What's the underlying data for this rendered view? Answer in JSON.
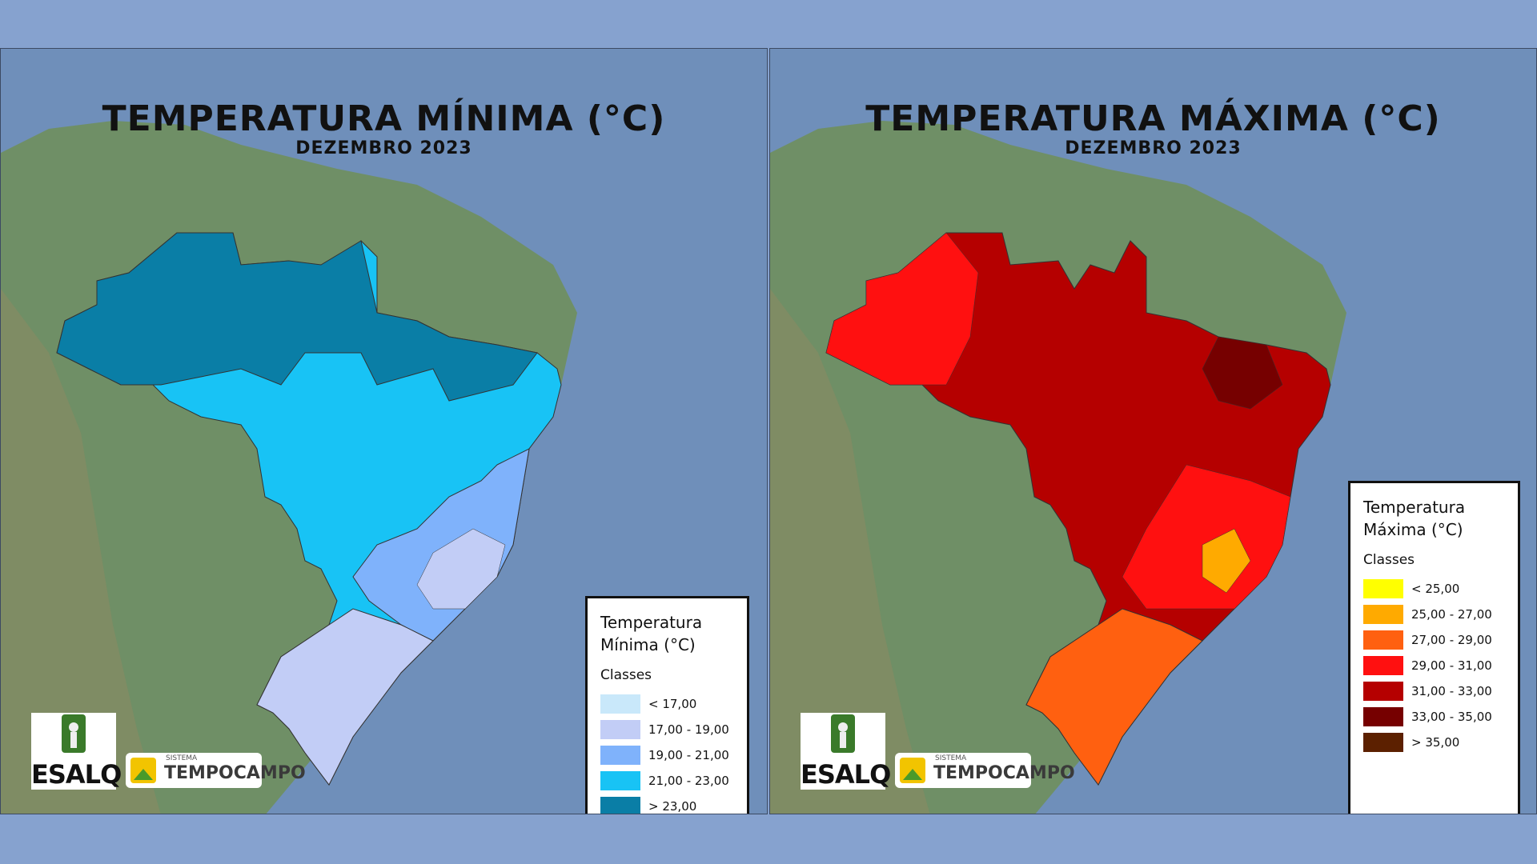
{
  "colors": {
    "background": "#86a2cf",
    "ocean": "#6f8fba",
    "land": "#6f8f66"
  },
  "panels": [
    {
      "id": "min",
      "title": "TEMPERATURA MÍNIMA (°C)",
      "subtitle": "DEZEMBRO 2023",
      "legend": {
        "title_line1": "Temperatura",
        "title_line2": "Mínima (°C)",
        "classes_label": "Classes",
        "items": [
          {
            "label": "< 17,00",
            "color": "#c9e8fa"
          },
          {
            "label": "17,00 - 19,00",
            "color": "#c2cdf6"
          },
          {
            "label": "19,00 - 21,00",
            "color": "#7fb2fb"
          },
          {
            "label": "21,00 - 23,00",
            "color": "#18c3f5"
          },
          {
            "label": "> 23,00",
            "color": "#0a7ea6"
          }
        ]
      }
    },
    {
      "id": "max",
      "title": "TEMPERATURA MÁXIMA (°C)",
      "subtitle": "DEZEMBRO 2023",
      "legend": {
        "title_line1": "Temperatura",
        "title_line2": "Máxima (°C)",
        "classes_label": "Classes",
        "items": [
          {
            "label": "< 25,00",
            "color": "#ffff00"
          },
          {
            "label": "25,00 - 27,00",
            "color": "#ffaa00"
          },
          {
            "label": "27,00 - 29,00",
            "color": "#ff6010"
          },
          {
            "label": "29,00 - 31,00",
            "color": "#ff1010"
          },
          {
            "label": "31,00 - 33,00",
            "color": "#b50000"
          },
          {
            "label": "33,00 - 35,00",
            "color": "#760000"
          },
          {
            "label": "> 35,00",
            "color": "#5c2000"
          }
        ]
      }
    }
  ],
  "logos": {
    "esalq": "ESALQ",
    "sistema": "SISTEMA",
    "tempocampo": "TEMPOCAMPO"
  }
}
